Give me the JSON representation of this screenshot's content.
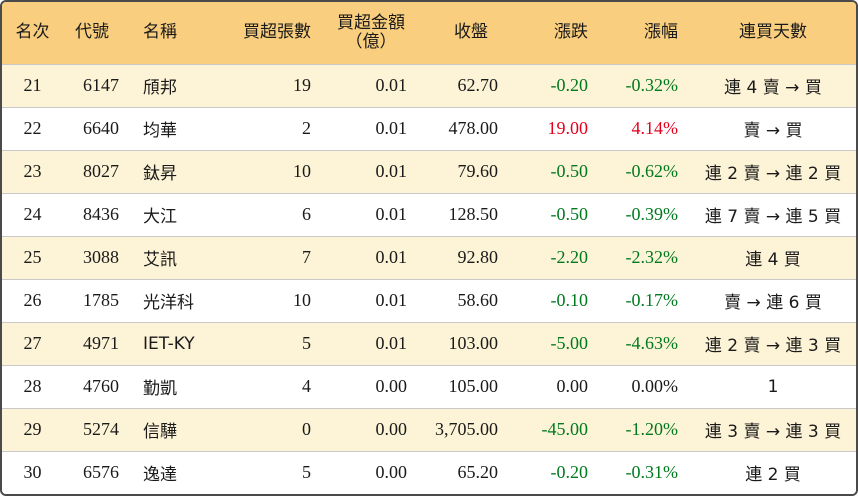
{
  "headers": {
    "rank": "名次",
    "code": "代號",
    "name": "名稱",
    "net_buy_lots": "買超張數",
    "net_buy_amount_line1": "買超金額",
    "net_buy_amount_line2": "（億）",
    "close": "收盤",
    "change": "漲跌",
    "change_pct": "漲幅",
    "streak": "連買天數"
  },
  "colors": {
    "header_bg": "#f9ce7e",
    "odd_row_bg": "#fdf3d6",
    "up": "#e3001b",
    "down": "#007a1f"
  },
  "rows": [
    {
      "rank": "21",
      "code": "6147",
      "name": "頎邦",
      "lots": "19",
      "amount": "0.01",
      "close": "62.70",
      "change": "-0.20",
      "pct": "-0.32%",
      "streak": "連 4 賣 → 買",
      "dir": "down"
    },
    {
      "rank": "22",
      "code": "6640",
      "name": "均華",
      "lots": "2",
      "amount": "0.01",
      "close": "478.00",
      "change": "19.00",
      "pct": "4.14%",
      "streak": "賣 → 買",
      "dir": "up"
    },
    {
      "rank": "23",
      "code": "8027",
      "name": "鈦昇",
      "lots": "10",
      "amount": "0.01",
      "close": "79.60",
      "change": "-0.50",
      "pct": "-0.62%",
      "streak": "連 2 賣 → 連 2 買",
      "dir": "down"
    },
    {
      "rank": "24",
      "code": "8436",
      "name": "大江",
      "lots": "6",
      "amount": "0.01",
      "close": "128.50",
      "change": "-0.50",
      "pct": "-0.39%",
      "streak": "連 7 賣 → 連 5 買",
      "dir": "down"
    },
    {
      "rank": "25",
      "code": "3088",
      "name": "艾訊",
      "lots": "7",
      "amount": "0.01",
      "close": "92.80",
      "change": "-2.20",
      "pct": "-2.32%",
      "streak": "連 4 買",
      "dir": "down"
    },
    {
      "rank": "26",
      "code": "1785",
      "name": "光洋科",
      "lots": "10",
      "amount": "0.01",
      "close": "58.60",
      "change": "-0.10",
      "pct": "-0.17%",
      "streak": "賣 → 連 6 買",
      "dir": "down"
    },
    {
      "rank": "27",
      "code": "4971",
      "name": "IET-KY",
      "lots": "5",
      "amount": "0.01",
      "close": "103.00",
      "change": "-5.00",
      "pct": "-4.63%",
      "streak": "連 2 賣 → 連 3 買",
      "dir": "down"
    },
    {
      "rank": "28",
      "code": "4760",
      "name": "勤凱",
      "lots": "4",
      "amount": "0.00",
      "close": "105.00",
      "change": "0.00",
      "pct": "0.00%",
      "streak": "1",
      "dir": "flat"
    },
    {
      "rank": "29",
      "code": "5274",
      "name": "信驊",
      "lots": "0",
      "amount": "0.00",
      "close": "3,705.00",
      "change": "-45.00",
      "pct": "-1.20%",
      "streak": "連 3 賣 → 連 3 買",
      "dir": "down"
    },
    {
      "rank": "30",
      "code": "6576",
      "name": "逸達",
      "lots": "5",
      "amount": "0.00",
      "close": "65.20",
      "change": "-0.20",
      "pct": "-0.31%",
      "streak": "連 2 買",
      "dir": "down"
    }
  ]
}
